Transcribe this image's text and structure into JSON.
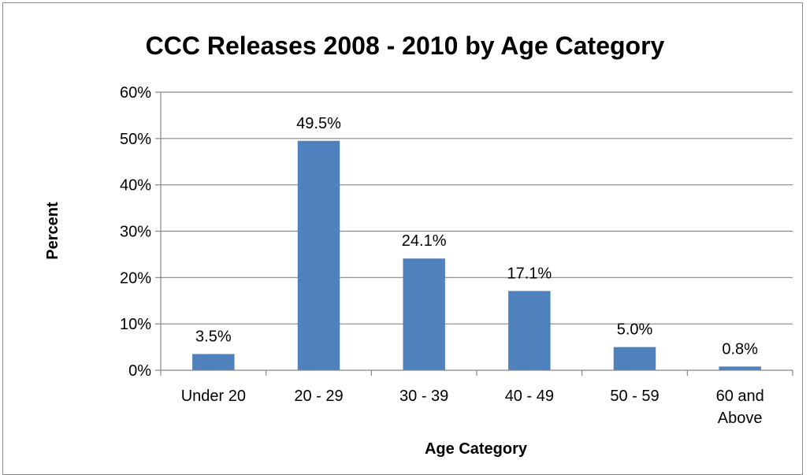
{
  "chart_data": {
    "type": "bar",
    "title": "CCC Releases 2008 - 2010 by Age Category",
    "xlabel": "Age Category",
    "ylabel": "Percent",
    "categories": [
      [
        "Under 20"
      ],
      [
        "20 - 29"
      ],
      [
        "30 - 39"
      ],
      [
        "40 - 49"
      ],
      [
        "50 - 59"
      ],
      [
        "60 and",
        "Above"
      ]
    ],
    "values": [
      3.5,
      49.5,
      24.1,
      17.1,
      5.0,
      0.8
    ],
    "data_labels": [
      "3.5%",
      "49.5%",
      "24.1%",
      "17.1%",
      "5.0%",
      "0.8%"
    ],
    "ylim": [
      0,
      60
    ],
    "yticks": [
      0,
      10,
      20,
      30,
      40,
      50,
      60
    ],
    "ytick_labels": [
      "0%",
      "10%",
      "20%",
      "30%",
      "40%",
      "50%",
      "60%"
    ],
    "grid": true,
    "legend": "none",
    "bar_color": "#4f81bd"
  }
}
